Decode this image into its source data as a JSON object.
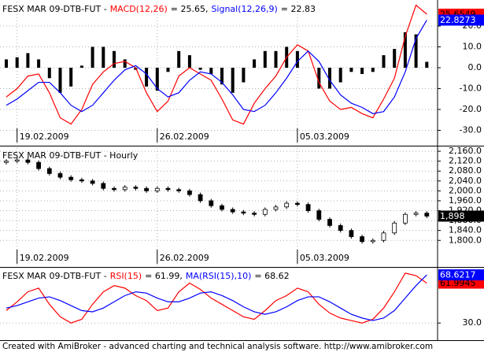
{
  "chart_data": [
    {
      "type": "line",
      "title": "FESX MAR 09-DTB-FUT -",
      "categories": [
        null,
        "19.02.2009",
        null,
        null,
        null,
        null,
        null,
        null,
        null,
        null,
        null,
        null,
        null,
        null,
        "26.02.2009",
        null,
        null,
        null,
        null,
        null,
        null,
        null,
        null,
        null,
        null,
        null,
        null,
        "05.03.2009",
        null,
        null,
        null,
        null,
        null,
        null,
        null,
        null,
        null,
        null,
        null,
        null
      ],
      "series": [
        {
          "name": "MACD(12,26)",
          "legend_value": "= 25.65,",
          "last_value_label": "25.6549",
          "color": "#ff0000",
          "values": [
            -14,
            -10,
            -4,
            -3,
            -12,
            -24,
            -27,
            -20,
            -8,
            -2,
            2,
            3,
            0,
            -12,
            -21,
            -16,
            -4,
            0,
            -3,
            -6,
            -15,
            -25,
            -27,
            -17,
            -10,
            -4,
            5,
            11,
            8,
            -7,
            -16,
            -20,
            -19,
            -22,
            -24,
            -15,
            -5,
            15,
            30,
            25.6549
          ]
        },
        {
          "name": "Signal(12,26,9)",
          "legend_value": "= 22.83",
          "last_value_label": "22.8273",
          "color": "#0000ff",
          "values": [
            -18,
            -15,
            -11,
            -7,
            -7,
            -12,
            -18,
            -21,
            -18,
            -12,
            -6,
            -1,
            1,
            -3,
            -10,
            -14,
            -12,
            -6,
            -2,
            -3,
            -7,
            -13,
            -20,
            -21,
            -18,
            -12,
            -5,
            3,
            8,
            3,
            -6,
            -13,
            -17,
            -19,
            -22,
            -21,
            -14,
            -2,
            14,
            22.8273
          ]
        }
      ],
      "histogram": {
        "color": "#000000",
        "values": [
          4,
          5,
          7,
          4,
          -5,
          -12,
          -9,
          1,
          10,
          10,
          8,
          4,
          -1,
          -9,
          -11,
          -2,
          8,
          6,
          -1,
          -3,
          -8,
          -12,
          -7,
          4,
          8,
          8,
          10,
          8,
          0,
          -10,
          -10,
          -7,
          -2,
          -3,
          -2,
          6,
          9,
          17,
          16,
          2.8276
        ]
      },
      "ylim": [
        -36.6,
        31.7
      ],
      "yticks": [
        {
          "value": 20,
          "label": "20.0"
        },
        {
          "value": 10,
          "label": "10.0"
        },
        {
          "value": 0,
          "label": "0.0"
        },
        {
          "value": -10,
          "label": "-10.0"
        },
        {
          "value": -20,
          "label": "-20.0"
        },
        {
          "value": -30,
          "label": "-30.0"
        }
      ],
      "grid": true
    },
    {
      "type": "candlestick",
      "title": "FESX MAR 09-DTB-FUT - Hourly",
      "categories": [
        null,
        "19.02.2009",
        null,
        null,
        null,
        null,
        null,
        null,
        null,
        null,
        null,
        null,
        null,
        null,
        "26.02.2009",
        null,
        null,
        null,
        null,
        null,
        null,
        null,
        null,
        null,
        null,
        null,
        null,
        "05.03.2009",
        null,
        null,
        null,
        null,
        null,
        null,
        null,
        null,
        null,
        null,
        null,
        null
      ],
      "open": [
        2115,
        2120,
        2125,
        2115,
        2090,
        2070,
        2055,
        2045,
        2040,
        2030,
        2010,
        2005,
        2015,
        2010,
        2000,
        2010,
        2005,
        2000,
        1985,
        1960,
        1940,
        1925,
        1915,
        1910,
        1905,
        1925,
        1935,
        1950,
        1945,
        1920,
        1885,
        1860,
        1840,
        1815,
        1795,
        1800,
        1830,
        1870,
        1905,
        1910
      ],
      "high": [
        2128,
        2133,
        2133,
        2123,
        2098,
        2078,
        2063,
        2053,
        2048,
        2038,
        2018,
        2023,
        2023,
        2018,
        2018,
        2018,
        2013,
        2008,
        1993,
        1968,
        1948,
        1933,
        1923,
        1918,
        1933,
        1943,
        1958,
        1958,
        1953,
        1928,
        1893,
        1868,
        1848,
        1823,
        1808,
        1838,
        1878,
        1913,
        1918,
        1918
      ],
      "low": [
        2107,
        2112,
        2107,
        2082,
        2062,
        2047,
        2037,
        2032,
        2022,
        2002,
        1997,
        1997,
        2002,
        1992,
        1992,
        1997,
        1992,
        1977,
        1952,
        1932,
        1917,
        1907,
        1902,
        1897,
        1897,
        1917,
        1927,
        1937,
        1912,
        1877,
        1852,
        1832,
        1807,
        1787,
        1787,
        1792,
        1822,
        1862,
        1897,
        1890
      ],
      "close": [
        2120,
        2125,
        2115,
        2090,
        2070,
        2055,
        2045,
        2040,
        2030,
        2010,
        2005,
        2015,
        2010,
        2000,
        2010,
        2005,
        2000,
        1985,
        1960,
        1940,
        1925,
        1915,
        1910,
        1905,
        1925,
        1935,
        1950,
        1945,
        1920,
        1885,
        1860,
        1840,
        1815,
        1795,
        1800,
        1830,
        1870,
        1905,
        1910,
        1898
      ],
      "last_value_label": "1,898",
      "up_color": "#ffffff",
      "down_color": "#000000",
      "ylim": [
        1699,
        2173
      ],
      "yticks": [
        {
          "value": 2160,
          "label": "2,160.0"
        },
        {
          "value": 2120,
          "label": "2,120.0"
        },
        {
          "value": 2080,
          "label": "2,080.0"
        },
        {
          "value": 2040,
          "label": "2,040.0"
        },
        {
          "value": 2000,
          "label": "2,000.0"
        },
        {
          "value": 1960,
          "label": "1,960.0"
        },
        {
          "value": 1920,
          "label": "1,920.0"
        },
        {
          "value": 1880,
          "label": "1,880.0"
        },
        {
          "value": 1840,
          "label": "1,840.0"
        },
        {
          "value": 1800,
          "label": "1,800.0"
        }
      ],
      "grid": true
    },
    {
      "type": "line",
      "title": "FESX MAR 09-DTB-FUT -",
      "series": [
        {
          "name": "RSI(15)",
          "legend_value": "= 61.99,",
          "last_value_label": "61.9945",
          "color": "#ff0000",
          "values": [
            40,
            47,
            55,
            58,
            45,
            35,
            30,
            33,
            45,
            55,
            60,
            58,
            52,
            48,
            40,
            42,
            55,
            62,
            57,
            50,
            45,
            40,
            35,
            33,
            40,
            48,
            52,
            58,
            55,
            45,
            38,
            34,
            32,
            30,
            33,
            42,
            55,
            70,
            68,
            61.9945
          ]
        },
        {
          "name": "MA(RSI(15),10)",
          "legend_value": "= 68.62",
          "last_value_label": "68.6217",
          "color": "#0000ff",
          "values": [
            42,
            44,
            47,
            50,
            51,
            48,
            44,
            40,
            39,
            42,
            47,
            52,
            55,
            54,
            50,
            47,
            47,
            50,
            54,
            55,
            52,
            48,
            43,
            39,
            37,
            39,
            43,
            48,
            51,
            51,
            47,
            42,
            37,
            34,
            32,
            34,
            40,
            50,
            60,
            68.6217
          ]
        }
      ],
      "ylim": [
        17.5,
        73.7
      ],
      "yticks": [
        {
          "value": 30,
          "label": "30.0"
        }
      ],
      "grid": true
    }
  ],
  "footer": "Created with AmiBroker - advanced charting and technical analysis software. http://www.amibroker.com"
}
